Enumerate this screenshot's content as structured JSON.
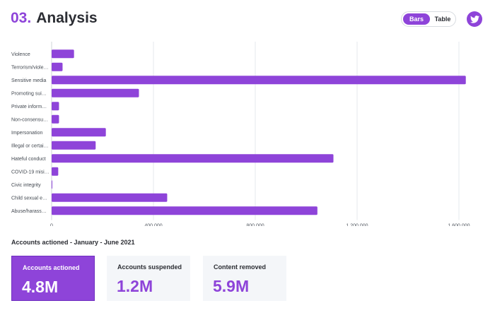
{
  "header": {
    "section_number": "03.",
    "title": "Analysis",
    "view_toggle": {
      "active_label": "Bars",
      "inactive_label": "Table"
    },
    "share_icon": "twitter-icon"
  },
  "colors": {
    "accent": "#8e44d9",
    "card_bg": "#f4f6f9",
    "grid": "#e6e9ed"
  },
  "chart_data": {
    "type": "bar",
    "orientation": "horizontal",
    "categories": [
      "Violence",
      "Terrorism/viole…",
      "Sensitive media",
      "Promoting sui…",
      "Private inform…",
      "Non-consensu…",
      "Impersonation",
      "Illegal or certai…",
      "Hateful conduct",
      "COVID-19 misi…",
      "Civic integrity",
      "Child sexual e…",
      "Abuse/harass…"
    ],
    "values": [
      88000,
      43000,
      1627000,
      343000,
      29000,
      29000,
      213000,
      173000,
      1107000,
      26000,
      2000,
      454000,
      1044000
    ],
    "xlim": [
      0,
      1650000
    ],
    "xticks": [
      0,
      400000,
      800000,
      1200000,
      1600000
    ],
    "xtick_labels": [
      "0",
      "400,000",
      "800,000",
      "1,200,000",
      "1,600,000"
    ],
    "grid": true,
    "legend": "none",
    "bar_color": "#8e44d9"
  },
  "summary": {
    "label": "Accounts actioned - January - June 2021",
    "cards": [
      {
        "label": "Accounts actioned",
        "value": "4.8M"
      },
      {
        "label": "Accounts suspended",
        "value": "1.2M"
      },
      {
        "label": "Content removed",
        "value": "5.9M"
      }
    ]
  }
}
